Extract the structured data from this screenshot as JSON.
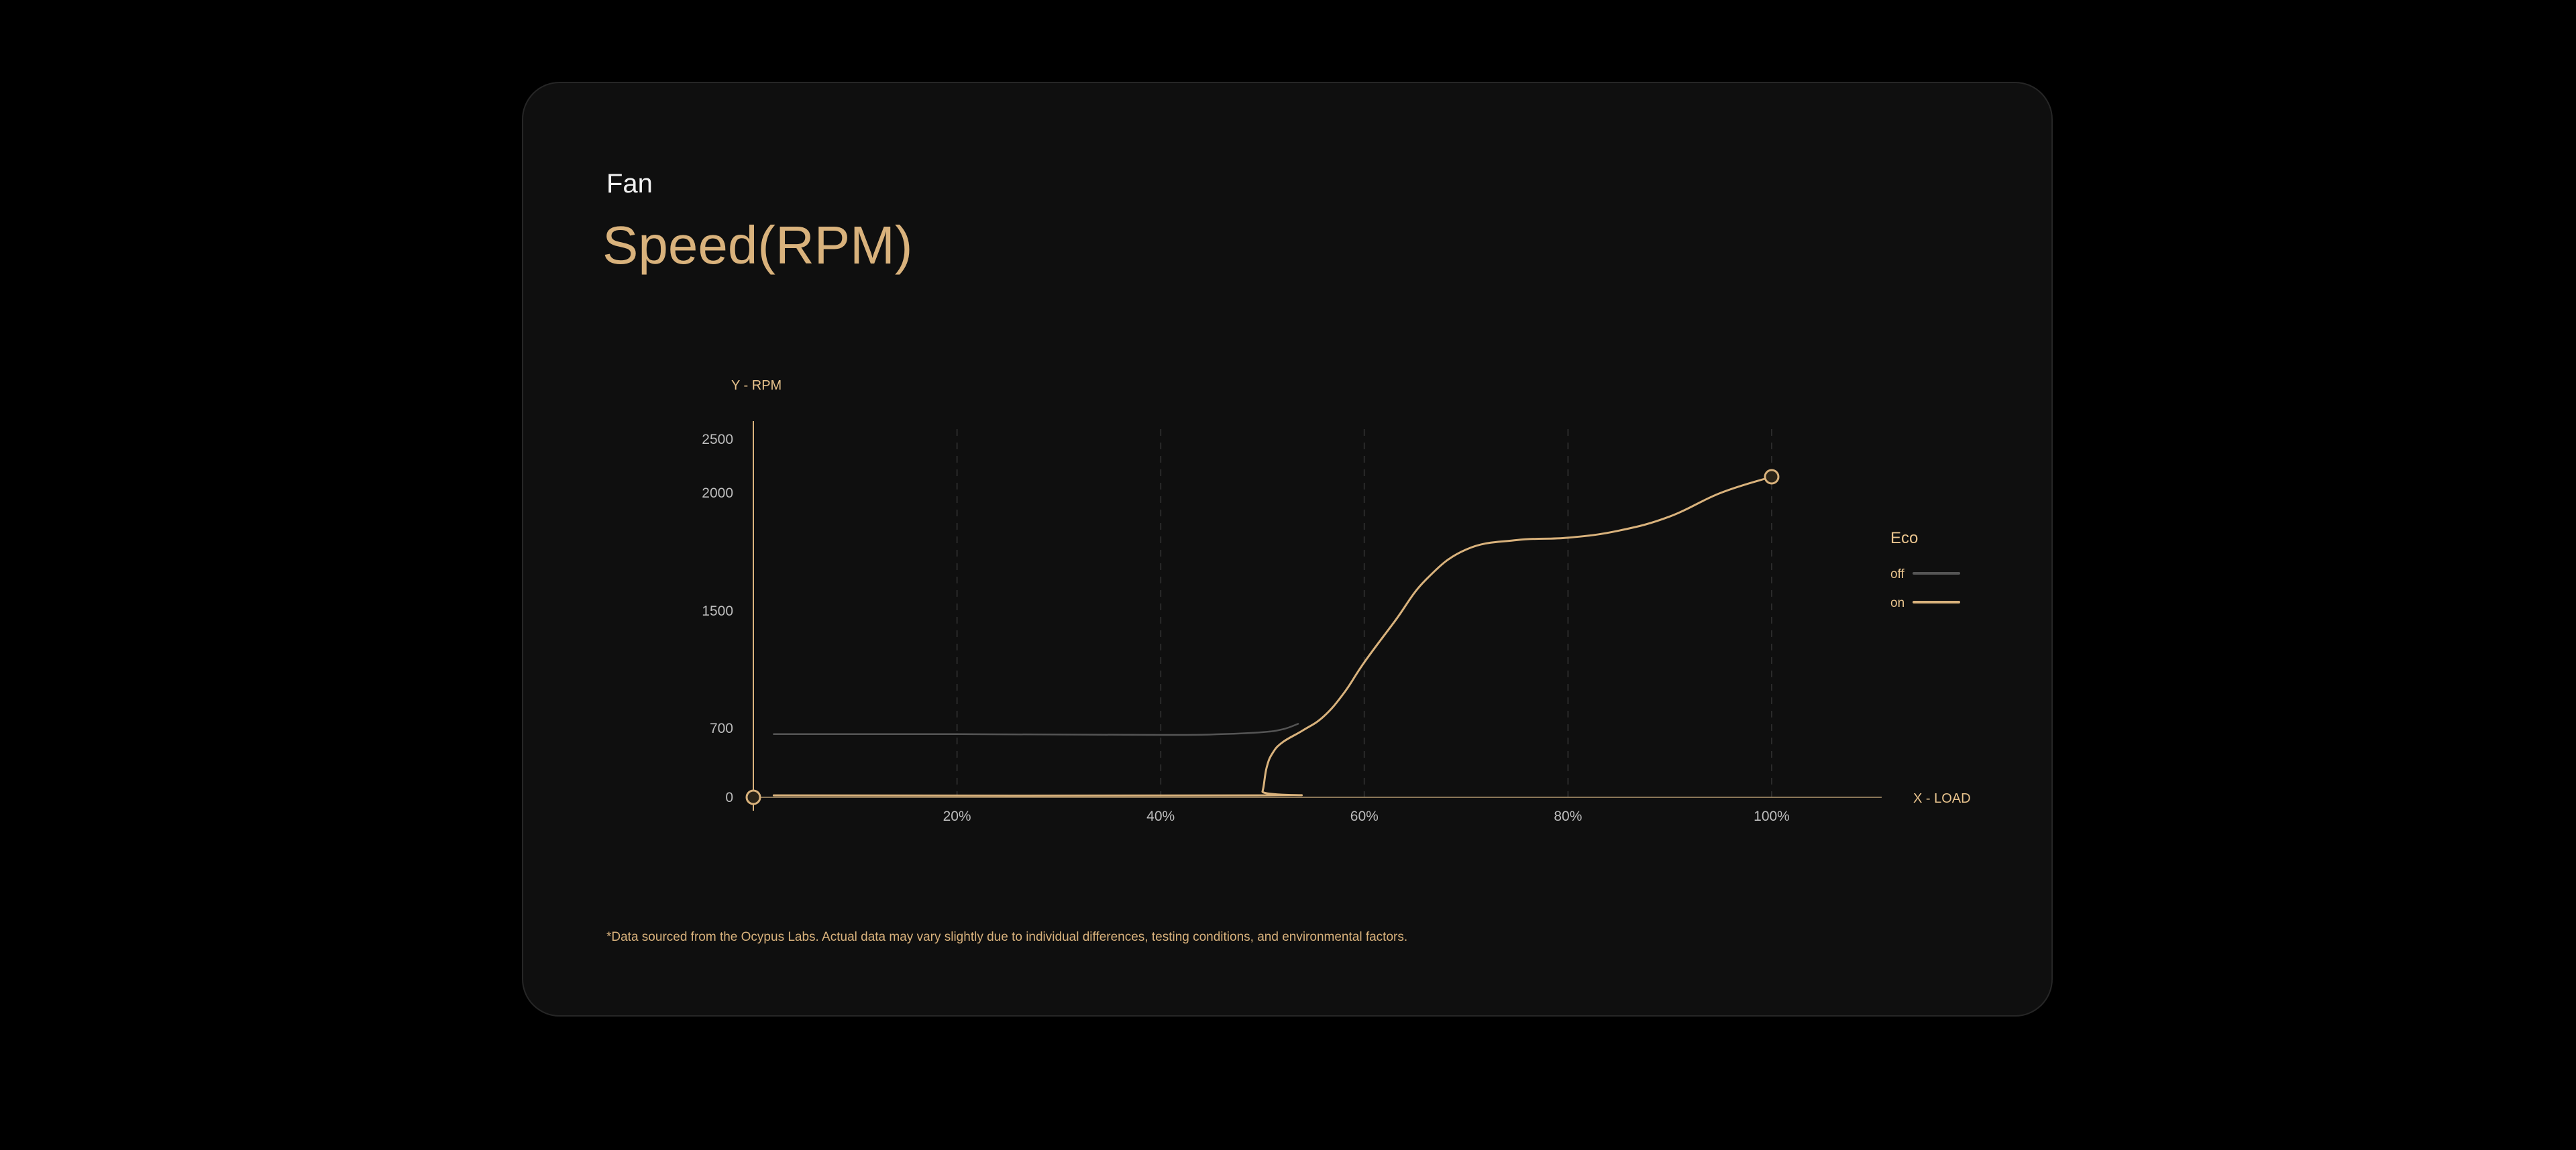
{
  "card": {
    "subtitle": "Fan",
    "title": "Speed(RPM)",
    "footnote": "*Data sourced from the Ocypus Labs. Actual data may vary slightly due to individual differences, testing conditions, and environmental factors."
  },
  "colors": {
    "accent": "#d9b27c",
    "accent_bright": "#e9c48e",
    "off_line": "#555555",
    "background": "#0f0f0f",
    "page": "#000000"
  },
  "chart_data": {
    "type": "line",
    "ylabel": "Y - RPM",
    "xlabel": "X - LOAD",
    "y_ticks": [
      {
        "value": 0,
        "label": "0"
      },
      {
        "value": 700,
        "label": "700"
      },
      {
        "value": 1500,
        "label": "1500"
      },
      {
        "value": 2000,
        "label": "2000"
      },
      {
        "value": 2500,
        "label": "2500"
      }
    ],
    "x_ticks": [
      {
        "value": 20,
        "label": "20%"
      },
      {
        "value": 40,
        "label": "40%"
      },
      {
        "value": 60,
        "label": "60%"
      },
      {
        "value": 80,
        "label": "80%"
      },
      {
        "value": 100,
        "label": "100%"
      }
    ],
    "xlim": [
      0,
      110
    ],
    "ylim": [
      0,
      2500
    ],
    "grid": "vertical dashed",
    "legend": {
      "title": "Eco",
      "placement": "right",
      "entries": [
        {
          "label": "off",
          "color": "#555555"
        },
        {
          "label": "on",
          "color": "#d9b27c"
        }
      ]
    },
    "series": [
      {
        "name": "off",
        "color": "#555555",
        "points": [
          [
            2,
            640
          ],
          [
            20,
            640
          ],
          [
            40,
            632
          ],
          [
            46,
            640
          ],
          [
            50,
            660
          ],
          [
            52,
            690
          ],
          [
            53.5,
            730
          ]
        ]
      },
      {
        "name": "on",
        "color": "#d9b27c",
        "points": [
          [
            2,
            20
          ],
          [
            49.5,
            20
          ],
          [
            50,
            60
          ],
          [
            50.4,
            300
          ],
          [
            51,
            450
          ],
          [
            52,
            560
          ],
          [
            54,
            680
          ],
          [
            56,
            780
          ],
          [
            58,
            940
          ],
          [
            60,
            1150
          ],
          [
            63,
            1430
          ],
          [
            66,
            1630
          ],
          [
            70,
            1760
          ],
          [
            75,
            1800
          ],
          [
            80,
            1810
          ],
          [
            85,
            1840
          ],
          [
            90,
            1900
          ],
          [
            95,
            2000
          ],
          [
            100,
            2150
          ]
        ]
      }
    ],
    "markers": [
      {
        "x": 0,
        "y": 0
      },
      {
        "x": 100,
        "y": 2150
      }
    ]
  }
}
